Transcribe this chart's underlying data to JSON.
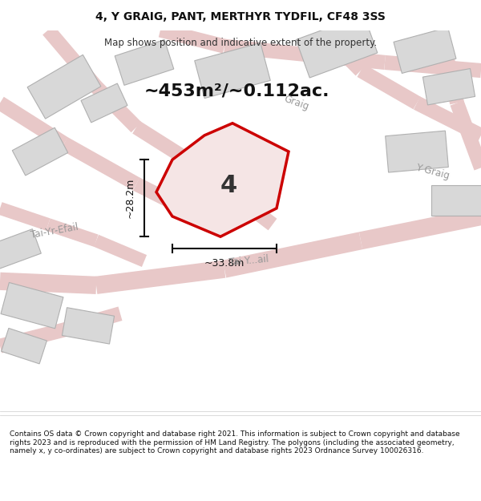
{
  "title_line1": "4, Y GRAIG, PANT, MERTHYR TYDFIL, CF48 3SS",
  "title_line2": "Map shows position and indicative extent of the property.",
  "area_text": "~453m²/~0.112ac.",
  "label_number": "4",
  "dim_vertical": "~28.2m",
  "dim_horizontal": "~33.8m",
  "street_label_left": "Tai-Yr-Efail",
  "street_label_right": "Y Graig",
  "street_label_diag": "Graig",
  "street_label_bottom": "Tai Y...ail",
  "footer_text": "Contains OS data © Crown copyright and database right 2021. This information is subject to Crown copyright and database rights 2023 and is reproduced with the permission of HM Land Registry. The polygons (including the associated geometry, namely x, y co-ordinates) are subject to Crown copyright and database rights 2023 Ordnance Survey 100026316.",
  "bg_color": "#ffffff",
  "map_bg": "#f5f5f5",
  "road_color": "#e8c8c8",
  "building_color": "#d8d8d8",
  "building_edge": "#c0c0c0",
  "highlight_color": "#cc0000",
  "highlight_fill": "#f5e5e5",
  "text_color": "#333333",
  "dim_color": "#111111"
}
